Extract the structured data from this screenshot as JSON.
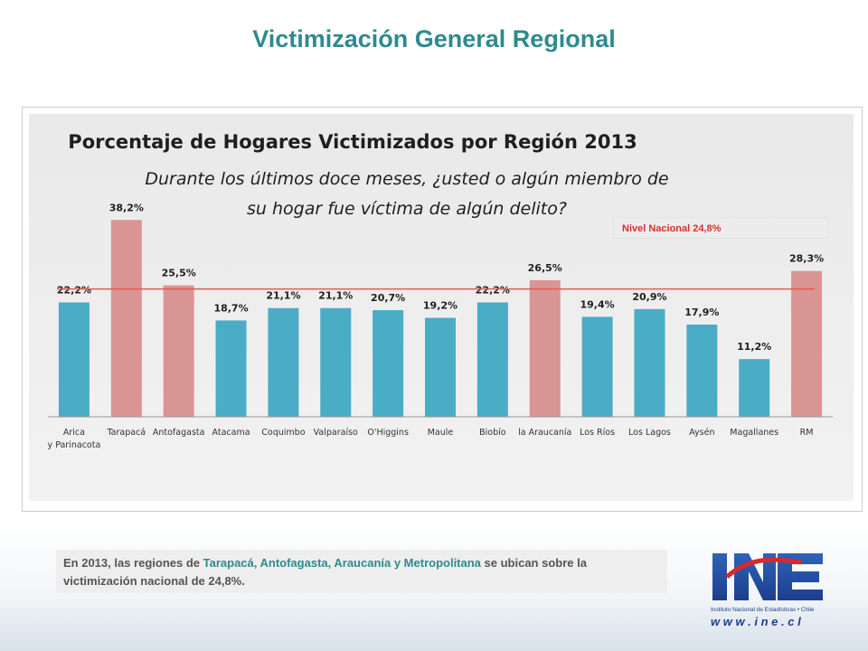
{
  "slide": {
    "title": "Victimización General Regional"
  },
  "note": {
    "part1": "En 2013, las regiones de ",
    "highlight": "Tarapacá, Antofagasta, Araucanía y Metropolitana",
    "part2": " se ubican sobre la victimización nacional de 24,8%."
  },
  "logo": {
    "mark": "INE",
    "caption": "Instituto Nacional de Estadísticas • Chile",
    "url": "w w w . i n e . c l"
  },
  "colors": {
    "bar_below": "#4bacc6",
    "bar_above": "#d99594",
    "reference_line": "#e05c5a",
    "title_teal": "#2e8a8f"
  },
  "chart_data": {
    "type": "bar",
    "title": "Porcentaje de Hogares Victimizados por Región 2013",
    "subtitle_line1": "Durante los últimos doce meses, ¿usted o algún miembro de",
    "subtitle_line2": "su hogar fue víctima de algún delito?",
    "categories": [
      "Arica\ny Parinacota",
      "Tarapacá",
      "Antofagasta",
      "Atacama",
      "Coquimbo",
      "Valparaíso",
      "O'Higgins",
      "Maule",
      "Biobío",
      "la Araucanía",
      "Los Ríos",
      "Los Lagos",
      "Aysén",
      "Magallanes",
      "RM"
    ],
    "values": [
      22.2,
      38.2,
      25.5,
      18.7,
      21.1,
      21.1,
      20.7,
      19.2,
      22.2,
      26.5,
      19.4,
      20.9,
      17.9,
      11.2,
      28.3
    ],
    "value_labels": [
      "22,2%",
      "38,2%",
      "25,5%",
      "18,7%",
      "21,1%",
      "21,1%",
      "20,7%",
      "19,2%",
      "22,2%",
      "26,5%",
      "19,4%",
      "20,9%",
      "17,9%",
      "11,2%",
      "28,3%"
    ],
    "reference_line": {
      "label": "Nivel Nacional 24,8%",
      "value": 24.8
    },
    "ylim": [
      0,
      40
    ],
    "grid": false,
    "legend_placement": "top-right"
  }
}
